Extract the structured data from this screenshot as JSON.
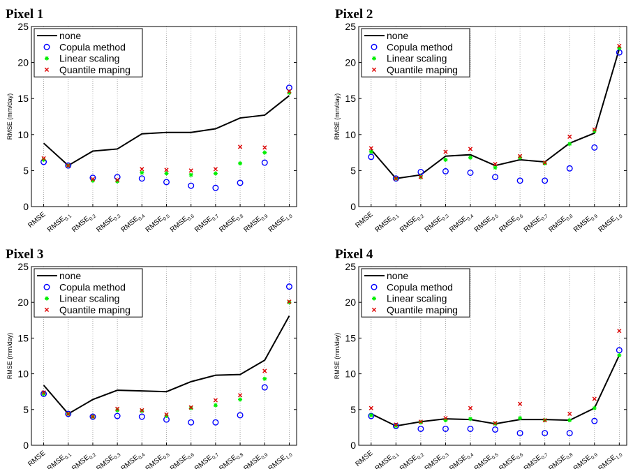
{
  "chart_data": [
    {
      "type": "line",
      "title": "Pixel 1",
      "xlabel": "",
      "ylabel": "RMSE (mm/day)",
      "ylim": [
        0,
        25
      ],
      "yticks": [
        0,
        5,
        10,
        15,
        20,
        25
      ],
      "grid": "vertical dotted",
      "legend_position": "top-left",
      "categories": [
        {
          "base": "RMSE",
          "sub": ""
        },
        {
          "base": "RMSE",
          "sub": "0.1"
        },
        {
          "base": "RMSE",
          "sub": "0.2"
        },
        {
          "base": "RMSE",
          "sub": "0.3"
        },
        {
          "base": "RMSE",
          "sub": "0.4"
        },
        {
          "base": "RMSE",
          "sub": "0.5"
        },
        {
          "base": "RMSE",
          "sub": "0.6"
        },
        {
          "base": "RMSE",
          "sub": "0.7"
        },
        {
          "base": "RMSE",
          "sub": "0.8"
        },
        {
          "base": "RMSE",
          "sub": "0.9"
        },
        {
          "base": "RMSE",
          "sub": "1.0"
        }
      ],
      "series": [
        {
          "name": "none",
          "marker": "line",
          "color": "#000000",
          "values": [
            8.8,
            5.7,
            7.7,
            8.0,
            10.1,
            10.3,
            10.3,
            10.8,
            12.3,
            12.7,
            15.4
          ]
        },
        {
          "name": "Copula method",
          "marker": "circle",
          "color": "#0000ff",
          "values": [
            6.2,
            5.7,
            4.0,
            4.1,
            3.9,
            3.4,
            2.9,
            2.6,
            3.3,
            6.1,
            16.5
          ]
        },
        {
          "name": "Linear scaling",
          "marker": "star",
          "color": "#00ee00",
          "values": [
            6.5,
            5.7,
            3.6,
            3.5,
            4.7,
            4.6,
            4.4,
            4.6,
            6.0,
            7.5,
            15.8
          ]
        },
        {
          "name": "Quantile maping",
          "marker": "x",
          "color": "#dd0000",
          "values": [
            6.7,
            5.7,
            3.8,
            3.7,
            5.2,
            5.1,
            5.0,
            5.2,
            8.3,
            8.2,
            16.0
          ]
        }
      ]
    },
    {
      "type": "line",
      "title": "Pixel 2",
      "xlabel": "",
      "ylabel": "RMSE (mm/day)",
      "ylim": [
        0,
        25
      ],
      "yticks": [
        0,
        5,
        10,
        15,
        20,
        25
      ],
      "grid": "vertical dotted",
      "legend_position": "top-left",
      "categories": [
        {
          "base": "RMSE",
          "sub": ""
        },
        {
          "base": "RMSE",
          "sub": "0.1"
        },
        {
          "base": "RMSE",
          "sub": "0.2"
        },
        {
          "base": "RMSE",
          "sub": "0.3"
        },
        {
          "base": "RMSE",
          "sub": "0.4"
        },
        {
          "base": "RMSE",
          "sub": "0.5"
        },
        {
          "base": "RMSE",
          "sub": "0.6"
        },
        {
          "base": "RMSE",
          "sub": "0.7"
        },
        {
          "base": "RMSE",
          "sub": "0.8"
        },
        {
          "base": "RMSE",
          "sub": "0.9"
        },
        {
          "base": "RMSE",
          "sub": "1.0"
        }
      ],
      "series": [
        {
          "name": "none",
          "marker": "line",
          "color": "#000000",
          "values": [
            7.9,
            3.9,
            4.4,
            7.0,
            7.2,
            5.7,
            6.5,
            6.2,
            8.8,
            10.2,
            21.9
          ]
        },
        {
          "name": "Copula method",
          "marker": "circle",
          "color": "#0000ff",
          "values": [
            6.9,
            3.9,
            4.8,
            4.9,
            4.7,
            4.1,
            3.6,
            3.6,
            5.3,
            8.2,
            21.4
          ]
        },
        {
          "name": "Linear scaling",
          "marker": "star",
          "color": "#00ee00",
          "values": [
            7.6,
            3.9,
            4.1,
            6.5,
            6.8,
            5.4,
            6.8,
            6.0,
            8.7,
            10.5,
            22.0
          ]
        },
        {
          "name": "Quantile maping",
          "marker": "x",
          "color": "#dd0000",
          "values": [
            8.1,
            3.9,
            4.1,
            7.6,
            8.0,
            5.9,
            7.0,
            6.1,
            9.7,
            10.7,
            22.3
          ]
        }
      ]
    },
    {
      "type": "line",
      "title": "Pixel 3",
      "xlabel": "",
      "ylabel": "RMSE (mm/day)",
      "ylim": [
        0,
        25
      ],
      "yticks": [
        0,
        5,
        10,
        15,
        20,
        25
      ],
      "grid": "vertical dotted",
      "legend_position": "top-left",
      "categories": [
        {
          "base": "RMSE",
          "sub": ""
        },
        {
          "base": "RMSE",
          "sub": "0.1"
        },
        {
          "base": "RMSE",
          "sub": "0.2"
        },
        {
          "base": "RMSE",
          "sub": "0.3"
        },
        {
          "base": "RMSE",
          "sub": "0.4"
        },
        {
          "base": "RMSE",
          "sub": "0.5"
        },
        {
          "base": "RMSE",
          "sub": "0.6"
        },
        {
          "base": "RMSE",
          "sub": "0.7"
        },
        {
          "base": "RMSE",
          "sub": "0.8"
        },
        {
          "base": "RMSE",
          "sub": "0.9"
        },
        {
          "base": "RMSE",
          "sub": "1.0"
        }
      ],
      "series": [
        {
          "name": "none",
          "marker": "line",
          "color": "#000000",
          "values": [
            8.4,
            4.4,
            6.4,
            7.7,
            7.6,
            7.5,
            8.9,
            9.8,
            9.9,
            11.9,
            18.1
          ]
        },
        {
          "name": "Copula method",
          "marker": "circle",
          "color": "#0000ff",
          "values": [
            7.2,
            4.4,
            4.0,
            4.1,
            4.0,
            3.6,
            3.2,
            3.2,
            4.2,
            8.1,
            22.2
          ]
        },
        {
          "name": "Linear scaling",
          "marker": "star",
          "color": "#00ee00",
          "values": [
            7.2,
            4.4,
            4.0,
            4.9,
            4.8,
            4.1,
            5.2,
            5.6,
            6.4,
            9.3,
            20.0
          ]
        },
        {
          "name": "Quantile maping",
          "marker": "x",
          "color": "#dd0000",
          "values": [
            7.4,
            4.4,
            4.0,
            5.1,
            4.9,
            4.3,
            5.3,
            6.3,
            7.0,
            10.4,
            20.1
          ]
        }
      ]
    },
    {
      "type": "line",
      "title": "Pixel 4",
      "xlabel": "",
      "ylabel": "RMSE (mm/day)",
      "ylim": [
        0,
        25
      ],
      "yticks": [
        0,
        5,
        10,
        15,
        20,
        25
      ],
      "grid": "vertical dotted",
      "legend_position": "top-left",
      "categories": [
        {
          "base": "RMSE",
          "sub": ""
        },
        {
          "base": "RMSE",
          "sub": "0.1"
        },
        {
          "base": "RMSE",
          "sub": "0.2"
        },
        {
          "base": "RMSE",
          "sub": "0.3"
        },
        {
          "base": "RMSE",
          "sub": "0.4"
        },
        {
          "base": "RMSE",
          "sub": "0.5"
        },
        {
          "base": "RMSE",
          "sub": "0.6"
        },
        {
          "base": "RMSE",
          "sub": "0.7"
        },
        {
          "base": "RMSE",
          "sub": "0.8"
        },
        {
          "base": "RMSE",
          "sub": "0.9"
        },
        {
          "base": "RMSE",
          "sub": "1.0"
        }
      ],
      "series": [
        {
          "name": "none",
          "marker": "line",
          "color": "#000000",
          "values": [
            4.4,
            2.7,
            3.3,
            3.7,
            3.6,
            3.0,
            3.6,
            3.6,
            3.5,
            5.2,
            12.6
          ]
        },
        {
          "name": "Copula method",
          "marker": "circle",
          "color": "#0000ff",
          "values": [
            4.1,
            2.7,
            2.3,
            2.3,
            2.3,
            2.2,
            1.7,
            1.7,
            1.7,
            3.4,
            13.3
          ]
        },
        {
          "name": "Linear scaling",
          "marker": "star",
          "color": "#00ee00",
          "values": [
            4.2,
            2.7,
            3.2,
            3.5,
            3.7,
            3.0,
            3.8,
            3.5,
            3.5,
            5.2,
            12.6
          ]
        },
        {
          "name": "Quantile maping",
          "marker": "x",
          "color": "#dd0000",
          "values": [
            5.2,
            2.9,
            3.3,
            3.8,
            5.2,
            3.1,
            5.8,
            3.5,
            4.4,
            6.5,
            16.0
          ]
        }
      ]
    }
  ]
}
